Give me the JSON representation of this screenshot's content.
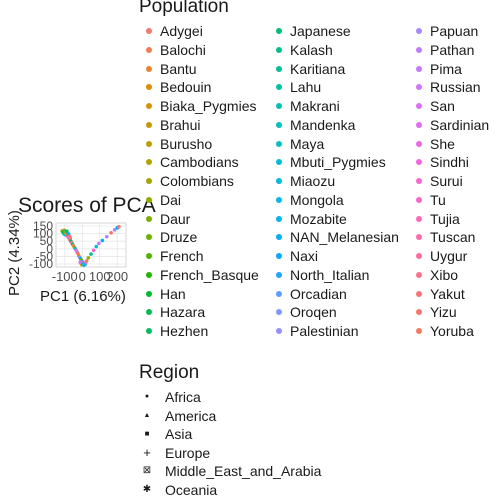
{
  "chart_data": {
    "type": "scatter",
    "title": "Scores of PCA",
    "xlabel": "PC1 (6.16%)",
    "ylabel": "PC2 (4.34%)",
    "x_ticks": [
      "-100",
      "0",
      "100",
      "200"
    ],
    "y_ticks": [
      "150",
      "100",
      "50",
      "0",
      "-50",
      "-100"
    ],
    "xlim": [
      -150,
      250
    ],
    "ylim": [
      -120,
      170
    ],
    "grid": true,
    "legend_title": "Population",
    "legend_placement": "top-right",
    "populations": [
      {
        "name": "Adygei",
        "color": "#F8766D"
      },
      {
        "name": "Balochi",
        "color": "#F27D52"
      },
      {
        "name": "Bantu",
        "color": "#EA8331"
      },
      {
        "name": "Bedouin",
        "color": "#E08B00"
      },
      {
        "name": "Biaka_Pygmies",
        "color": "#D69100"
      },
      {
        "name": "Brahui",
        "color": "#CB9700"
      },
      {
        "name": "Burusho",
        "color": "#BF9C00"
      },
      {
        "name": "Cambodians",
        "color": "#B2A100"
      },
      {
        "name": "Colombians",
        "color": "#A3A500"
      },
      {
        "name": "Dai",
        "color": "#93AA00"
      },
      {
        "name": "Daur",
        "color": "#81AD00"
      },
      {
        "name": "Druze",
        "color": "#6BB100"
      },
      {
        "name": "French",
        "color": "#4FB400"
      },
      {
        "name": "French_Basque",
        "color": "#1DB700"
      },
      {
        "name": "Han",
        "color": "#00B92E"
      },
      {
        "name": "Hazara",
        "color": "#00BB4E"
      },
      {
        "name": "Hezhen",
        "color": "#00BD64"
      },
      {
        "name": "Japanese",
        "color": "#00BE76"
      },
      {
        "name": "Kalash",
        "color": "#00C087"
      },
      {
        "name": "Karitiana",
        "color": "#00C097"
      },
      {
        "name": "Lahu",
        "color": "#00C1A5"
      },
      {
        "name": "Makrani",
        "color": "#00C1B3"
      },
      {
        "name": "Mandenka",
        "color": "#00C0BF"
      },
      {
        "name": "Maya",
        "color": "#00BFCB"
      },
      {
        "name": "Mbuti_Pygmies",
        "color": "#00BDD6"
      },
      {
        "name": "Miaozu",
        "color": "#00BBE0"
      },
      {
        "name": "Mongola",
        "color": "#00B8E9"
      },
      {
        "name": "Mozabite",
        "color": "#00B4F0"
      },
      {
        "name": "NAN_Melanesian",
        "color": "#00B0F6"
      },
      {
        "name": "Naxi",
        "color": "#00ABFC"
      },
      {
        "name": "North_Italian",
        "color": "#1EA5FF"
      },
      {
        "name": "Orcadian",
        "color": "#5B9EFF"
      },
      {
        "name": "Oroqen",
        "color": "#7C97FF"
      },
      {
        "name": "Palestinian",
        "color": "#948FFF"
      },
      {
        "name": "Papuan",
        "color": "#A887FF"
      },
      {
        "name": "Pathan",
        "color": "#B97FFF"
      },
      {
        "name": "Pima",
        "color": "#C678FF"
      },
      {
        "name": "Russian",
        "color": "#D272FE"
      },
      {
        "name": "San",
        "color": "#DC6EF8"
      },
      {
        "name": "Sardinian",
        "color": "#E56BF1"
      },
      {
        "name": "She",
        "color": "#EC69E8"
      },
      {
        "name": "Sindhi",
        "color": "#F266DE"
      },
      {
        "name": "Surui",
        "color": "#F766D3"
      },
      {
        "name": "Tu",
        "color": "#FA66C6"
      },
      {
        "name": "Tujia",
        "color": "#FD68B8"
      },
      {
        "name": "Tuscan",
        "color": "#FE6AA9"
      },
      {
        "name": "Uygur",
        "color": "#FF6D9A"
      },
      {
        "name": "Xibo",
        "color": "#FD718A"
      },
      {
        "name": "Yakut",
        "color": "#FB7479"
      },
      {
        "name": "Yizu",
        "color": "#F8766D"
      },
      {
        "name": "Yoruba",
        "color": "#F47A63"
      }
    ],
    "region_legend_title": "Region",
    "regions": [
      {
        "name": "Africa",
        "symbol": "circle"
      },
      {
        "name": "America",
        "symbol": "triangle"
      },
      {
        "name": "Asia",
        "symbol": "square"
      },
      {
        "name": "Europe",
        "symbol": "plus"
      },
      {
        "name": "Middle_East_and_Arabia",
        "symbol": "square-cross"
      },
      {
        "name": "Oceania",
        "symbol": "asterisk"
      }
    ],
    "points": [
      {
        "x": -115,
        "y": 118,
        "c": "#CB9700"
      },
      {
        "x": -110,
        "y": 110,
        "c": "#00B92E"
      },
      {
        "x": -105,
        "y": 100,
        "c": "#00BE76"
      },
      {
        "x": -102,
        "y": 122,
        "c": "#93AA00"
      },
      {
        "x": -100,
        "y": 95,
        "c": "#00B8E9"
      },
      {
        "x": -98,
        "y": 112,
        "c": "#00C1A5"
      },
      {
        "x": -95,
        "y": 105,
        "c": "#B2A100"
      },
      {
        "x": -92,
        "y": 90,
        "c": "#00BBE0"
      },
      {
        "x": -90,
        "y": 100,
        "c": "#FD68B8"
      },
      {
        "x": -88,
        "y": 115,
        "c": "#00BD64"
      },
      {
        "x": -85,
        "y": 85,
        "c": "#EC69E8"
      },
      {
        "x": -82,
        "y": 92,
        "c": "#81AD00"
      },
      {
        "x": -80,
        "y": 78,
        "c": "#FA66C6"
      },
      {
        "x": -78,
        "y": 98,
        "c": "#00ABFC"
      },
      {
        "x": -75,
        "y": 70,
        "c": "#7C97FF"
      },
      {
        "x": -72,
        "y": 82,
        "c": "#FB7479"
      },
      {
        "x": -70,
        "y": 60,
        "c": "#F8766D"
      },
      {
        "x": -68,
        "y": 72,
        "c": "#FD718A"
      },
      {
        "x": -65,
        "y": 50,
        "c": "#00BB4E"
      },
      {
        "x": -60,
        "y": 40,
        "c": "#FF6D9A"
      },
      {
        "x": -55,
        "y": 30,
        "c": "#00C087"
      },
      {
        "x": -50,
        "y": 20,
        "c": "#F27D52"
      },
      {
        "x": -45,
        "y": 10,
        "c": "#BF9C00"
      },
      {
        "x": -40,
        "y": 0,
        "c": "#00C1B3"
      },
      {
        "x": -35,
        "y": -10,
        "c": "#F266DE"
      },
      {
        "x": -30,
        "y": -20,
        "c": "#B97FFF"
      },
      {
        "x": -25,
        "y": -30,
        "c": "#F8766D"
      },
      {
        "x": -20,
        "y": -45,
        "c": "#E08B00"
      },
      {
        "x": -15,
        "y": -55,
        "c": "#948FFF"
      },
      {
        "x": -10,
        "y": -65,
        "c": "#00B4F0"
      },
      {
        "x": -5,
        "y": -75,
        "c": "#6BB100"
      },
      {
        "x": 0,
        "y": -85,
        "c": "#1EA5FF"
      },
      {
        "x": 5,
        "y": -92,
        "c": "#FE6AA9"
      },
      {
        "x": 8,
        "y": -98,
        "c": "#E56BF1"
      },
      {
        "x": 12,
        "y": -100,
        "c": "#4FB400"
      },
      {
        "x": 15,
        "y": -95,
        "c": "#1DB700"
      },
      {
        "x": 18,
        "y": -102,
        "c": "#5B9EFF"
      },
      {
        "x": 20,
        "y": -90,
        "c": "#D272FE"
      },
      {
        "x": -8,
        "y": -95,
        "c": "#EA8331"
      },
      {
        "x": -2,
        "y": -105,
        "c": "#D69100"
      },
      {
        "x": 3,
        "y": -100,
        "c": "#00BFCB"
      },
      {
        "x": 10,
        "y": -108,
        "c": "#00BDD6"
      },
      {
        "x": -12,
        "y": -88,
        "c": "#DC6EF8"
      },
      {
        "x": 25,
        "y": -80,
        "c": "#F47A63"
      },
      {
        "x": 35,
        "y": -60,
        "c": "#A3A500"
      },
      {
        "x": 50,
        "y": -35,
        "c": "#00C097"
      },
      {
        "x": 65,
        "y": -10,
        "c": "#F766D3"
      },
      {
        "x": 80,
        "y": 15,
        "c": "#00BFCB"
      },
      {
        "x": 95,
        "y": 35,
        "c": "#C678FF"
      },
      {
        "x": 115,
        "y": 55,
        "c": "#00B0F6"
      },
      {
        "x": 140,
        "y": 80,
        "c": "#A887FF"
      },
      {
        "x": 165,
        "y": 105,
        "c": "#F8766D"
      },
      {
        "x": 185,
        "y": 125,
        "c": "#A887FF"
      },
      {
        "x": 200,
        "y": 138,
        "c": "#00B0F6"
      },
      {
        "x": 210,
        "y": 145,
        "c": "#F8766D"
      }
    ]
  }
}
